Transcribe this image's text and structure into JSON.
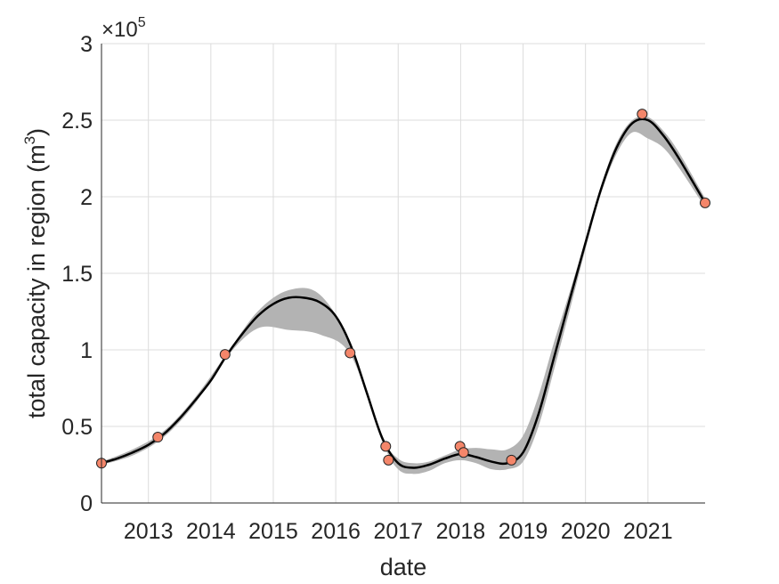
{
  "chart_data": {
    "type": "line",
    "xlabel": "date",
    "ylabel": "total capacity in region (m",
    "ylabel_superscript": "3",
    "ylabel_close": ")",
    "y_multiplier_text": "×10",
    "y_multiplier_exponent": "5",
    "xlim": [
      "2012-04-01",
      "2021-12-01"
    ],
    "ylim": [
      0,
      300000
    ],
    "grid": true,
    "x_tick_labels": [
      "2013",
      "2014",
      "2015",
      "2016",
      "2017",
      "2018",
      "2019",
      "2020",
      "2021"
    ],
    "y_tick_labels": [
      "0",
      "0.5",
      "1",
      "1.5",
      "2",
      "2.5",
      "3"
    ],
    "y_tick_values": [
      0,
      50000,
      100000,
      150000,
      200000,
      250000,
      300000
    ],
    "observations": {
      "marker_color": "#f4866a",
      "dates": [
        "2012-04-01",
        "2013-02-25",
        "2014-03-25",
        "2016-03-25",
        "2016-10-20",
        "2016-11-05",
        "2017-12-28",
        "2018-01-18",
        "2018-10-25",
        "2020-11-28",
        "2021-12-01"
      ],
      "values": [
        26000,
        43000,
        97000,
        98000,
        37000,
        28000,
        37000,
        33000,
        28000,
        254000,
        196000
      ]
    },
    "fit": {
      "line_color": "#000000",
      "dates": [
        "2012-04-01",
        "2012-07-01",
        "2012-10-01",
        "2013-01-01",
        "2013-04-01",
        "2013-07-01",
        "2013-10-01",
        "2014-01-01",
        "2014-04-01",
        "2014-07-01",
        "2014-10-01",
        "2015-01-01",
        "2015-04-01",
        "2015-07-01",
        "2015-10-01",
        "2016-01-01",
        "2016-04-01",
        "2016-07-01",
        "2016-10-01",
        "2017-01-01",
        "2017-04-01",
        "2017-07-01",
        "2017-10-01",
        "2018-01-01",
        "2018-04-01",
        "2018-07-01",
        "2018-10-01",
        "2019-01-01",
        "2019-04-01",
        "2019-07-01",
        "2019-10-01",
        "2020-01-01",
        "2020-04-01",
        "2020-07-01",
        "2020-10-01",
        "2021-01-01",
        "2021-04-01",
        "2021-07-01",
        "2021-12-01"
      ],
      "values": [
        26000,
        29000,
        33000,
        38000,
        45000,
        55000,
        67000,
        80000,
        96000,
        110000,
        122000,
        130000,
        134000,
        134000,
        131000,
        122000,
        102000,
        72000,
        42000,
        26000,
        23000,
        25000,
        29000,
        32000,
        30000,
        27000,
        26000,
        33000,
        58000,
        95000,
        133000,
        170000,
        205000,
        232000,
        248000,
        250000,
        240000,
        225000,
        196000
      ]
    },
    "uncertainty_band": {
      "fill_color": "#b3b3b3",
      "dates": [
        "2012-04-01",
        "2012-10-01",
        "2013-04-01",
        "2013-10-01",
        "2014-04-01",
        "2014-10-01",
        "2015-04-01",
        "2015-10-01",
        "2016-04-01",
        "2016-10-01",
        "2017-01-01",
        "2017-04-01",
        "2017-07-01",
        "2017-10-01",
        "2018-01-01",
        "2018-04-01",
        "2018-07-01",
        "2018-10-01",
        "2019-01-01",
        "2019-04-01",
        "2019-07-01",
        "2019-10-01",
        "2020-01-01",
        "2020-04-01",
        "2020-07-01",
        "2020-10-01",
        "2021-01-01",
        "2021-04-01",
        "2021-07-01",
        "2021-12-01"
      ],
      "upper": [
        27000,
        35000,
        47000,
        69000,
        97000,
        125000,
        139000,
        136000,
        103000,
        44000,
        29000,
        26000,
        27000,
        31000,
        35000,
        36000,
        35000,
        35000,
        44000,
        70000,
        105000,
        138000,
        172000,
        207000,
        235000,
        250000,
        252000,
        243000,
        229000,
        199000
      ],
      "lower": [
        25000,
        31000,
        43000,
        65000,
        95000,
        114000,
        113000,
        110000,
        96000,
        40000,
        22000,
        19000,
        21000,
        26000,
        28000,
        26000,
        22000,
        22000,
        27000,
        50000,
        87000,
        126000,
        166000,
        202000,
        228000,
        242000,
        238000,
        232000,
        219000,
        193000
      ]
    }
  }
}
